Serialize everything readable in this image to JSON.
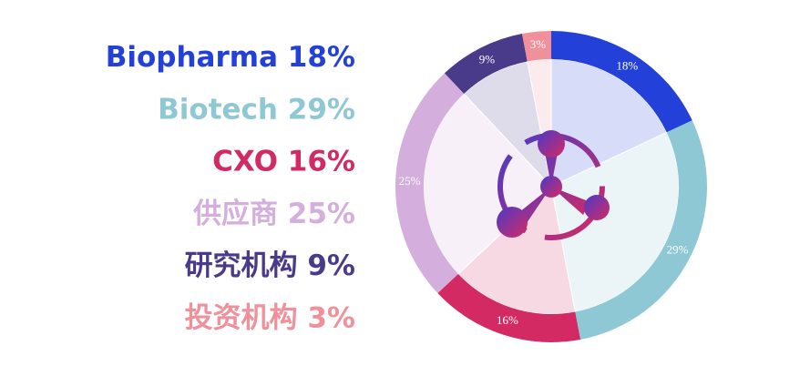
{
  "chart_data": {
    "type": "pie",
    "categories": [
      "Biopharma",
      "Biotech",
      "CXO",
      "供应商",
      "研究机构",
      "投资机构"
    ],
    "values": [
      18,
      29,
      16,
      25,
      9,
      3
    ],
    "value_labels": [
      "18%",
      "29%",
      "16%",
      "25%",
      "9%",
      "3%"
    ],
    "colors": [
      "#2340d8",
      "#8ec8d4",
      "#d42a64",
      "#d4aedd",
      "#4a3a8a",
      "#f0909a"
    ]
  }
}
